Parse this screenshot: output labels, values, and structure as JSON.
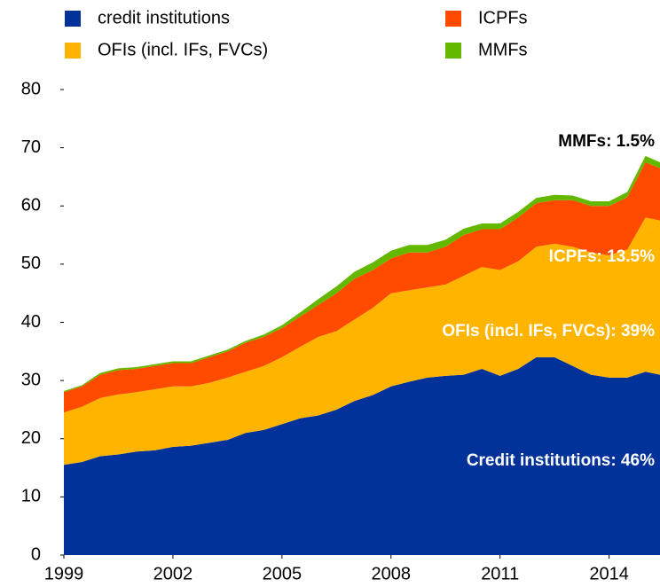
{
  "chart_data": {
    "type": "stacked_area",
    "x": [
      1999,
      1999.5,
      2000,
      2000.5,
      2001,
      2001.5,
      2002,
      2002.5,
      2003,
      2003.5,
      2004,
      2004.5,
      2005,
      2005.5,
      2006,
      2006.5,
      2007,
      2007.5,
      2008,
      2008.5,
      2009,
      2009.5,
      2010,
      2010.5,
      2011,
      2011.5,
      2012,
      2012.5,
      2013,
      2013.5,
      2014,
      2014.5,
      2015,
      2015.4
    ],
    "series": [
      {
        "name": "credit institutions",
        "color": "#003299",
        "values": [
          15.5,
          16,
          17,
          17.3,
          17.8,
          18,
          18.6,
          18.8,
          19.3,
          19.8,
          21,
          21.5,
          22.5,
          23.5,
          24,
          25,
          26.5,
          27.5,
          29,
          29.8,
          30.5,
          30.8,
          31,
          32,
          30.8,
          32,
          34,
          34,
          32.5,
          31,
          30.5,
          30.5,
          31.5,
          31
        ]
      },
      {
        "name": "OFIs (incl. IFs, FVCs)",
        "color": "#ffb400",
        "values": [
          9,
          9.5,
          10,
          10.3,
          10.2,
          10.5,
          10.4,
          10.2,
          10.3,
          10.7,
          10.5,
          11,
          11.5,
          12.3,
          13.5,
          13.5,
          14,
          15,
          16,
          15.7,
          15.5,
          15.7,
          17,
          17.5,
          18.2,
          18.5,
          19,
          19.5,
          20.5,
          21,
          21,
          22,
          26.5,
          26.5
        ]
      },
      {
        "name": "ICPFs",
        "color": "#ff4b00",
        "values": [
          3.5,
          3.5,
          4,
          4.2,
          4,
          4,
          4,
          4,
          4.4,
          4.5,
          5,
          5,
          5,
          5.2,
          5.5,
          6.5,
          7,
          6.5,
          6,
          6.5,
          6,
          6.5,
          7,
          6.5,
          7,
          7.5,
          7.5,
          7.5,
          8,
          8,
          8.5,
          9,
          9.5,
          9
        ]
      },
      {
        "name": "MMFs",
        "color": "#65b800",
        "values": [
          0.2,
          0.2,
          0.3,
          0.3,
          0.3,
          0.3,
          0.3,
          0.3,
          0.3,
          0.3,
          0.3,
          0.4,
          0.5,
          0.7,
          1.0,
          1.2,
          1.2,
          1.3,
          1.3,
          1.3,
          1.3,
          1.2,
          1.1,
          1.0,
          1.0,
          1.0,
          0.9,
          0.9,
          0.8,
          0.8,
          0.8,
          0.9,
          1.1,
          1.0
        ]
      }
    ],
    "annotations": [
      "MMFs: 1.5%",
      "ICPFs: 13.5%",
      "OFIs (incl. IFs, FVCs): 39%",
      "Credit institutions: 46%"
    ],
    "xlim": [
      1999,
      2015.4
    ],
    "xticks": [
      1999,
      2002,
      2005,
      2008,
      2011,
      2014
    ],
    "ylim": [
      0,
      80
    ],
    "yticks": [
      0,
      10,
      20,
      30,
      40,
      50,
      60,
      70,
      80
    ]
  }
}
